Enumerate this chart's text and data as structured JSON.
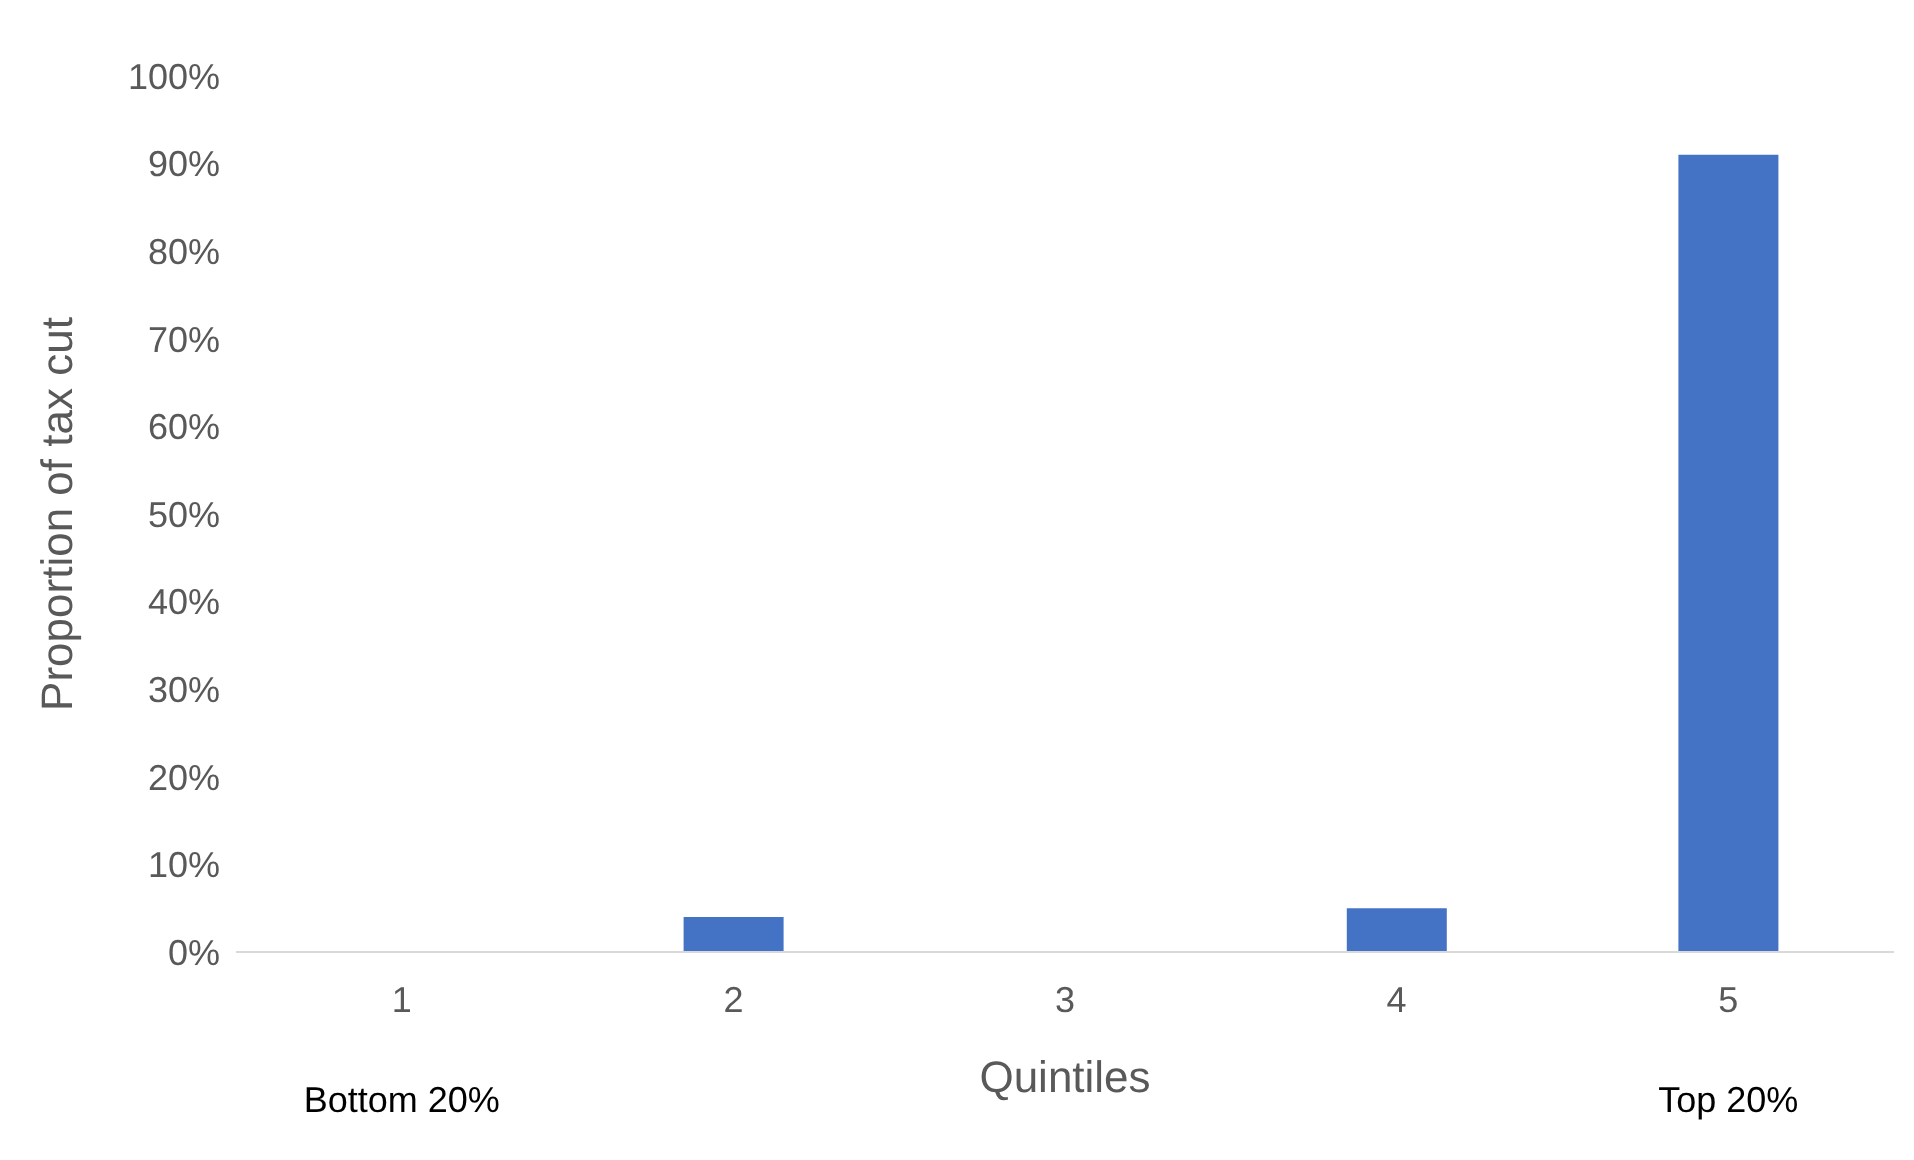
{
  "chart_data": {
    "type": "bar",
    "xlabel": "Quintiles",
    "ylabel": "Proportion of tax cut",
    "categories": [
      "1",
      "2",
      "3",
      "4",
      "5"
    ],
    "values": [
      0,
      4,
      0,
      5,
      91
    ],
    "color": "#4472c4",
    "ylim": [
      0,
      100
    ],
    "yticks": [
      {
        "value": 0,
        "label": "0%"
      },
      {
        "value": 10,
        "label": "10%"
      },
      {
        "value": 20,
        "label": "20%"
      },
      {
        "value": 30,
        "label": "30%"
      },
      {
        "value": 40,
        "label": "40%"
      },
      {
        "value": 50,
        "label": "50%"
      },
      {
        "value": 60,
        "label": "60%"
      },
      {
        "value": 70,
        "label": "70%"
      },
      {
        "value": 80,
        "label": "80%"
      },
      {
        "value": 90,
        "label": "90%"
      },
      {
        "value": 100,
        "label": "100%"
      }
    ],
    "grid": false,
    "annotations": [
      "Bottom 20%",
      "Top 20%"
    ]
  }
}
